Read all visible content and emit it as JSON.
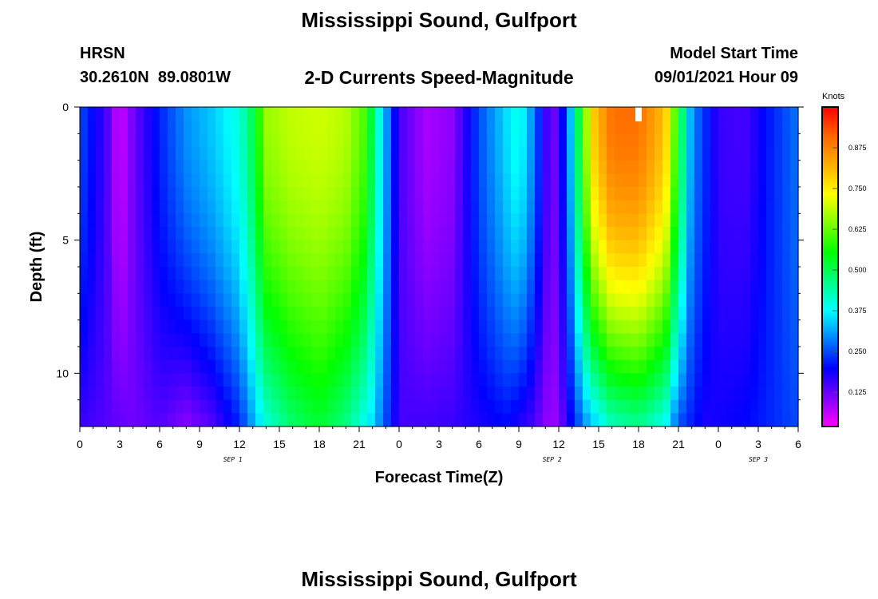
{
  "title": "Mississippi Sound, Gulfport",
  "footer_title": "Mississippi Sound, Gulfport",
  "station": {
    "id": "HRSN",
    "coords": "30.2610N  89.0801W"
  },
  "subtitle": "2-D Currents Speed-Magnitude",
  "model_start": {
    "label": "Model Start Time",
    "value": "09/01/2021 Hour 09"
  },
  "chart_data": {
    "type": "heatmap",
    "xlabel": "Forecast Time(Z)",
    "ylabel": "Depth (ft)",
    "x_ticks": [
      "0",
      "3",
      "6",
      "9",
      "12",
      "15",
      "18",
      "21",
      "0",
      "3",
      "6",
      "9",
      "12",
      "15",
      "18",
      "21",
      "0",
      "3",
      "6"
    ],
    "x_range_hours": [
      0,
      54
    ],
    "y_ticks": [
      "0",
      "5",
      "10"
    ],
    "y_range_ft": [
      0,
      12
    ],
    "y_inverted": true,
    "dates": [
      {
        "text": "SEP 1",
        "hour": 11.5
      },
      {
        "text": "SEP 2",
        "hour": 35.5
      },
      {
        "text": "SEP 3",
        "hour": 51
      }
    ],
    "colorbar": {
      "unit": "Knots",
      "min": 0.02,
      "max": 1.0,
      "ticks": [
        "0.125",
        "0.250",
        "0.375",
        "0.500",
        "0.625",
        "0.750",
        "0.875"
      ],
      "tick_values": [
        0.125,
        0.25,
        0.375,
        0.5,
        0.625,
        0.75,
        0.875
      ],
      "colors": [
        "#ff00ff",
        "#8000ff",
        "#0000ff",
        "#0080ff",
        "#00ffff",
        "#00ff80",
        "#00ff00",
        "#80ff00",
        "#ffff00",
        "#ffb000",
        "#ff6600",
        "#ff0000"
      ]
    },
    "surface_speed_profile": {
      "hours": [
        0,
        2,
        3,
        4,
        6,
        8,
        10,
        12,
        13,
        14,
        16,
        18,
        20,
        21.5,
        22.5,
        24,
        26,
        28,
        30,
        32,
        33,
        34,
        35.5,
        36.5,
        37.5,
        38.5,
        40,
        42,
        44,
        45,
        46,
        48,
        50,
        52,
        54
      ],
      "knots": [
        0.25,
        0.15,
        0.05,
        0.12,
        0.22,
        0.3,
        0.34,
        0.4,
        0.5,
        0.66,
        0.69,
        0.7,
        0.68,
        0.6,
        0.4,
        0.15,
        0.08,
        0.1,
        0.25,
        0.35,
        0.4,
        0.3,
        0.1,
        0.22,
        0.5,
        0.78,
        0.9,
        0.9,
        0.8,
        0.55,
        0.3,
        0.16,
        0.15,
        0.22,
        0.28
      ]
    },
    "bottom_speed_profile": {
      "hours": [
        0,
        4,
        6,
        8,
        10,
        12,
        14,
        16,
        18,
        20,
        22,
        24,
        28,
        32,
        34,
        35.5,
        36.5,
        38,
        40,
        42,
        44,
        45,
        47,
        50,
        54
      ],
      "knots": [
        0.16,
        0.12,
        0.14,
        0.1,
        0.14,
        0.22,
        0.4,
        0.48,
        0.52,
        0.46,
        0.35,
        0.15,
        0.16,
        0.2,
        0.15,
        0.08,
        0.15,
        0.3,
        0.42,
        0.45,
        0.38,
        0.25,
        0.18,
        0.2,
        0.25
      ]
    }
  }
}
